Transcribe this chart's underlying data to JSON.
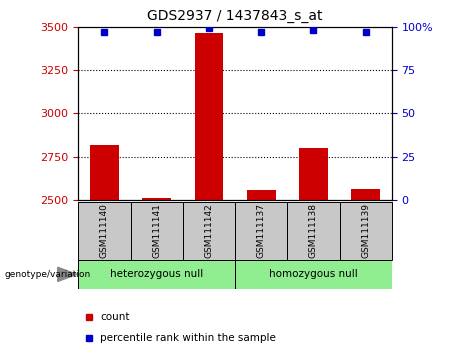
{
  "title": "GDS2937 / 1437843_s_at",
  "samples": [
    "GSM111140",
    "GSM111141",
    "GSM111142",
    "GSM111137",
    "GSM111138",
    "GSM111139"
  ],
  "counts": [
    2820,
    2510,
    3460,
    2560,
    2800,
    2565
  ],
  "percentiles": [
    97,
    97,
    99,
    97,
    98,
    97
  ],
  "ylim_left": [
    2500,
    3500
  ],
  "ylim_right": [
    0,
    100
  ],
  "yticks_left": [
    2500,
    2750,
    3000,
    3250,
    3500
  ],
  "yticks_right": [
    0,
    25,
    50,
    75,
    100
  ],
  "bar_color": "#cc0000",
  "dot_color": "#0000cc",
  "group1_label": "heterozygous null",
  "group2_label": "homozygous null",
  "group1_indices": [
    0,
    1,
    2
  ],
  "group2_indices": [
    3,
    4,
    5
  ],
  "group_bg_color": "#90ee90",
  "sample_bg_color": "#c8c8c8",
  "legend_count_label": "count",
  "legend_pct_label": "percentile rank within the sample",
  "genotype_label": "genotype/variation"
}
